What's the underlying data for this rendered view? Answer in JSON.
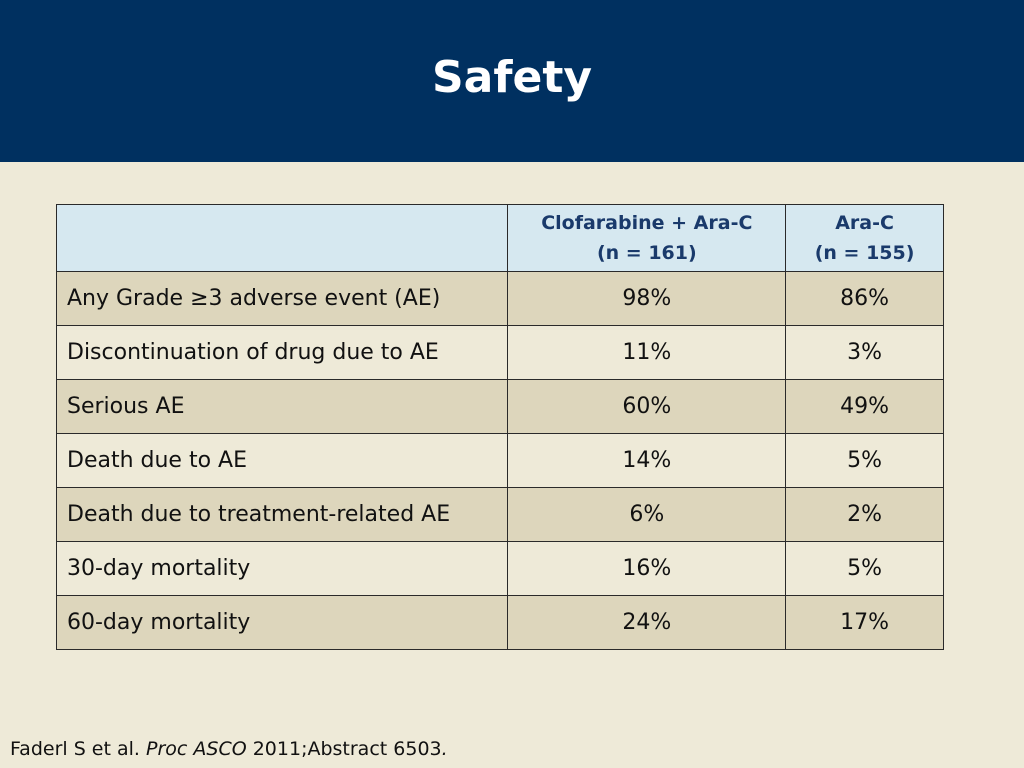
{
  "slide": {
    "title": "Safety"
  },
  "table": {
    "headers": [
      {
        "line1": "",
        "line2": ""
      },
      {
        "line1": "Clofarabine + Ara-C",
        "line2": "(n = 161)"
      },
      {
        "line1": "Ara-C",
        "line2": "(n = 155)"
      }
    ],
    "rows": [
      {
        "label": "Any Grade ≥3 adverse event (AE)",
        "clofarabine": "98%",
        "arac": "86%"
      },
      {
        "label": "Discontinuation of drug due to AE",
        "clofarabine": "11%",
        "arac": "3%"
      },
      {
        "label": "Serious AE",
        "clofarabine": "60%",
        "arac": "49%"
      },
      {
        "label": "Death due to AE",
        "clofarabine": "14%",
        "arac": "5%"
      },
      {
        "label": "Death due to treatment-related AE",
        "clofarabine": "6%",
        "arac": "2%"
      },
      {
        "label": "30-day mortality",
        "clofarabine": "16%",
        "arac": "5%"
      },
      {
        "label": "60-day mortality",
        "clofarabine": "24%",
        "arac": "17%"
      }
    ]
  },
  "footer": {
    "authors": "Faderl S et al. ",
    "journal": "Proc ASCO",
    "rest": " 2011;Abstract 6503",
    "end": "."
  },
  "colors": {
    "header_bg": "#003060",
    "slide_bg": "#EEEAD8",
    "table_header_bg": "#D6E8F0",
    "row_shade": "#DDD6BC",
    "header_text": "#1A3A6B"
  }
}
